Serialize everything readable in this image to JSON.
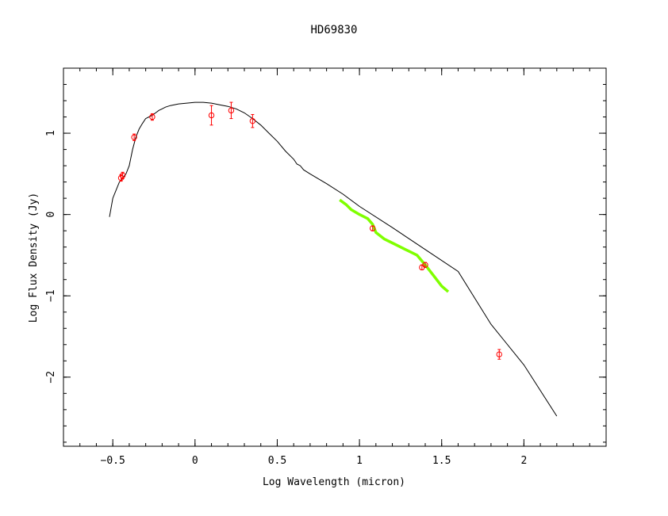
{
  "chart_data": {
    "type": "scatter",
    "title": "HD69830",
    "xlabel": "Log Wavelength (micron)",
    "ylabel": "Log Flux Density (Jy)",
    "xlim": [
      -0.8,
      2.5
    ],
    "ylim": [
      -2.85,
      1.8
    ],
    "x_ticks": [
      {
        "value": -0.5,
        "label": "−0.5"
      },
      {
        "value": 0,
        "label": "0"
      },
      {
        "value": 0.5,
        "label": "0.5"
      },
      {
        "value": 1,
        "label": "1"
      },
      {
        "value": 1.5,
        "label": "1.5"
      },
      {
        "value": 2,
        "label": "2"
      }
    ],
    "y_ticks": [
      {
        "value": -2,
        "label": "−2"
      },
      {
        "value": -1,
        "label": "−1"
      },
      {
        "value": 0,
        "label": "0"
      },
      {
        "value": 1,
        "label": "1"
      }
    ],
    "grid": false,
    "colors": {
      "model": "#000000",
      "spectrum": "#7fff00",
      "photometry": "#ff0000"
    },
    "series": [
      {
        "kind": "line",
        "x": [
          -0.52,
          -0.5,
          -0.48,
          -0.46,
          -0.44,
          -0.42,
          -0.4,
          -0.38,
          -0.36,
          -0.34,
          -0.32,
          -0.3,
          -0.28,
          -0.26,
          -0.24,
          -0.22,
          -0.2,
          -0.18,
          -0.15,
          -0.1,
          -0.05,
          0.0,
          0.05,
          0.1,
          0.15,
          0.2,
          0.25,
          0.3,
          0.35,
          0.4,
          0.45,
          0.5,
          0.55,
          0.6,
          0.62,
          0.64,
          0.66,
          0.7,
          0.8,
          0.9,
          1.0,
          1.2,
          1.4,
          1.6,
          1.8,
          2.0,
          2.2
        ],
        "y": [
          -0.03,
          0.2,
          0.3,
          0.4,
          0.45,
          0.5,
          0.6,
          0.8,
          0.95,
          1.05,
          1.12,
          1.18,
          1.2,
          1.22,
          1.25,
          1.28,
          1.3,
          1.32,
          1.34,
          1.36,
          1.37,
          1.38,
          1.38,
          1.37,
          1.35,
          1.33,
          1.3,
          1.25,
          1.18,
          1.1,
          1.0,
          0.9,
          0.78,
          0.68,
          0.62,
          0.6,
          0.55,
          0.5,
          0.38,
          0.25,
          0.1,
          -0.16,
          -0.43,
          -0.7,
          -1.35,
          -1.85,
          -2.48
        ]
      },
      {
        "kind": "line",
        "x": [
          0.88,
          0.92,
          0.95,
          1.0,
          1.05,
          1.08,
          1.1,
          1.15,
          1.2,
          1.25,
          1.28,
          1.3,
          1.35,
          1.4,
          1.45,
          1.5,
          1.54
        ],
        "y": [
          0.18,
          0.12,
          0.06,
          0.0,
          -0.05,
          -0.12,
          -0.22,
          -0.3,
          -0.35,
          -0.4,
          -0.43,
          -0.45,
          -0.5,
          -0.62,
          -0.75,
          -0.88,
          -0.95
        ]
      },
      {
        "kind": "points",
        "x": [
          -0.45,
          -0.44,
          -0.37,
          -0.26,
          0.1,
          0.22,
          0.35,
          1.08,
          1.38,
          1.4,
          1.85
        ],
        "y": [
          0.45,
          0.48,
          0.95,
          1.2,
          1.22,
          1.28,
          1.15,
          -0.17,
          -0.65,
          -0.62,
          -1.72
        ],
        "err": [
          0.04,
          0.04,
          0.04,
          0.04,
          0.12,
          0.1,
          0.08,
          0.03,
          0.03,
          0.03,
          0.06
        ]
      }
    ]
  }
}
